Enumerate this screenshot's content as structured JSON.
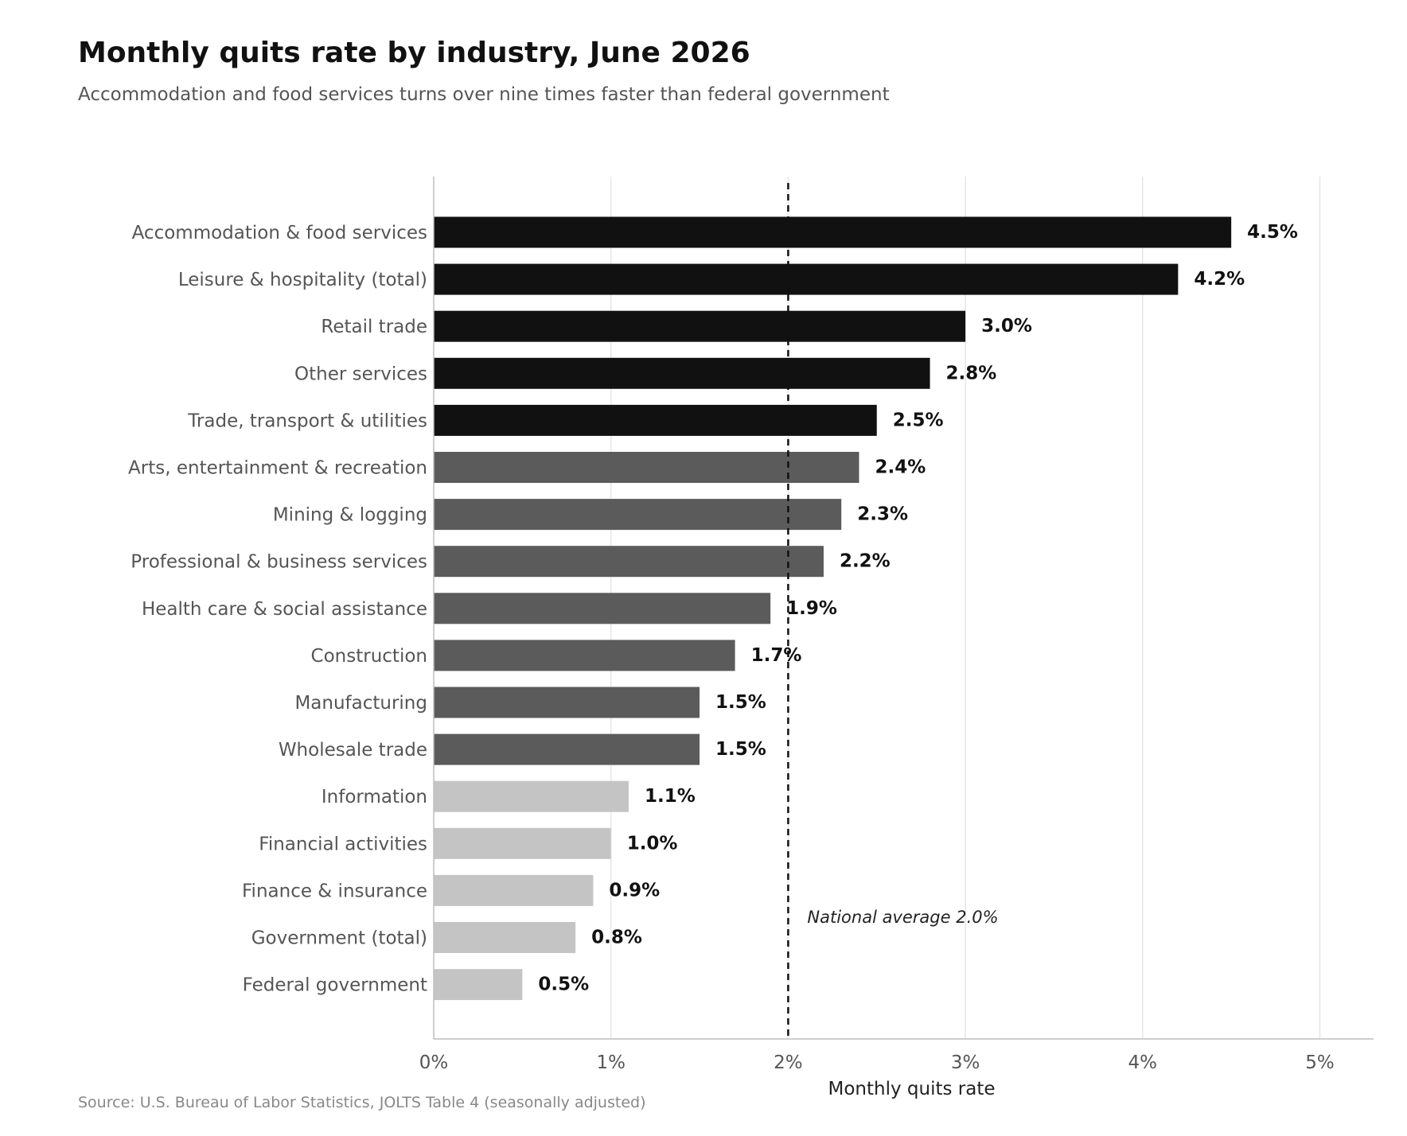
{
  "colors": {
    "high": "#111111",
    "mid": "#5b5b5b",
    "low": "#c4c4c4",
    "grid": "#e6e6e6",
    "axis": "#bdbdbd",
    "category_label": "#555555",
    "value_label": "#111111",
    "reference_line": "#111111"
  },
  "chart_data": {
    "type": "bar",
    "orientation": "horizontal",
    "title": "Monthly quits rate by industry, June 2026",
    "subtitle": "Accommodation and food services turns over nine times faster than federal government",
    "xlabel": "Monthly quits rate",
    "ylabel": "",
    "xlim": [
      0,
      5.3
    ],
    "x_ticks": [
      0,
      1,
      2,
      3,
      4,
      5
    ],
    "x_tick_labels": [
      "0%",
      "1%",
      "2%",
      "3%",
      "4%",
      "5%"
    ],
    "grid": "vertical",
    "categories": [
      "Accommodation & food services",
      "Leisure & hospitality (total)",
      "Retail trade",
      "Other services",
      "Trade, transport & utilities",
      "Arts, entertainment & recreation",
      "Mining & logging",
      "Professional & business services",
      "Health care & social assistance",
      "Construction",
      "Manufacturing",
      "Wholesale trade",
      "Information",
      "Financial activities",
      "Finance & insurance",
      "Government (total)",
      "Federal government"
    ],
    "values": [
      4.5,
      4.2,
      3.0,
      2.8,
      2.5,
      2.4,
      2.3,
      2.2,
      1.9,
      1.7,
      1.5,
      1.5,
      1.1,
      1.0,
      0.9,
      0.8,
      0.5
    ],
    "value_labels": [
      "4.5%",
      "4.2%",
      "3.0%",
      "2.8%",
      "2.5%",
      "2.4%",
      "2.3%",
      "2.2%",
      "1.9%",
      "1.7%",
      "1.5%",
      "1.5%",
      "1.1%",
      "1.0%",
      "0.9%",
      "0.8%",
      "0.5%"
    ],
    "bar_color_groups": [
      "high",
      "high",
      "high",
      "high",
      "high",
      "mid",
      "mid",
      "mid",
      "mid",
      "mid",
      "mid",
      "mid",
      "low",
      "low",
      "low",
      "low",
      "low"
    ],
    "reference_line": {
      "value": 2.0,
      "label": "National average 2.0%",
      "style": "dashed"
    },
    "source": "Source: U.S. Bureau of Labor Statistics, JOLTS Table 4 (seasonally adjusted)"
  }
}
